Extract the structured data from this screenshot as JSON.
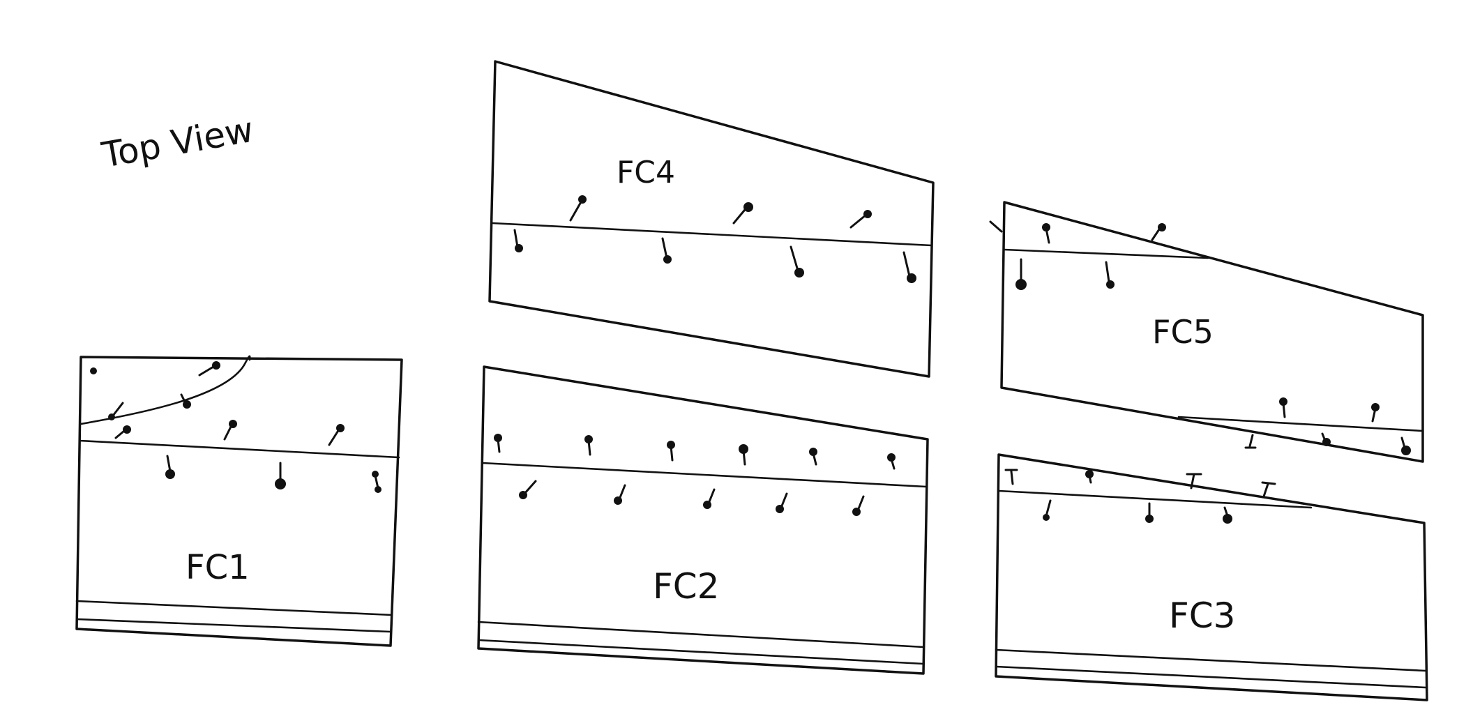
{
  "diagram": {
    "view_label": "Top View",
    "panels": [
      {
        "id": "fc1",
        "label": "FC1"
      },
      {
        "id": "fc2",
        "label": "FC2"
      },
      {
        "id": "fc3",
        "label": "FC3"
      },
      {
        "id": "fc4",
        "label": "FC4"
      },
      {
        "id": "fc5",
        "label": "FC5"
      }
    ]
  },
  "colors": {
    "ink": "#111111",
    "paper": "#ffffff"
  }
}
